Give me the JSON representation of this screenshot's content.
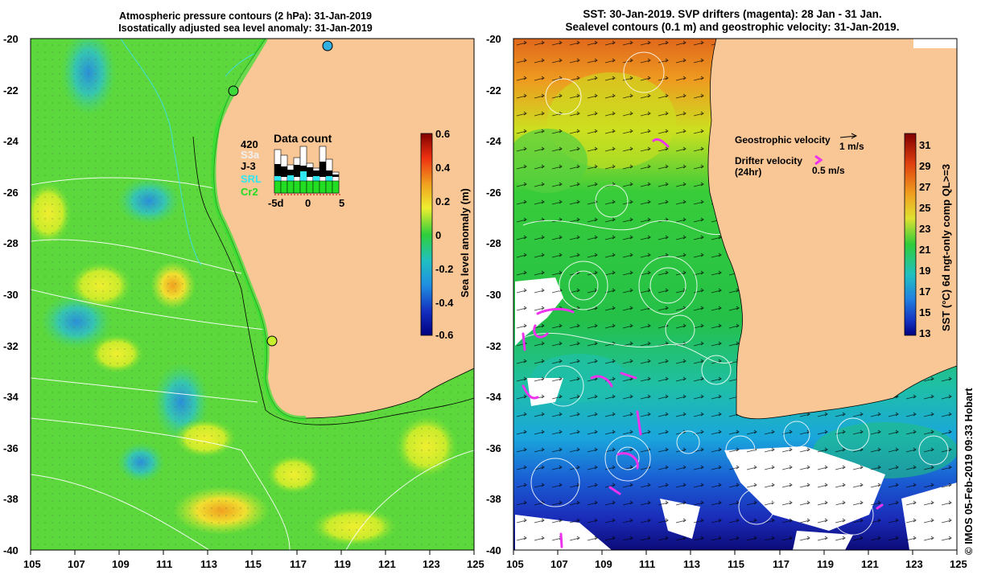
{
  "left_panel": {
    "title_line1": "Atmospheric pressure contours (2 hPa): 31-Jan-2019",
    "title_line2": "Isostatically adjusted sea level anomaly: 31-Jan-2019",
    "lat_ticks": [
      "-20",
      "-22",
      "-24",
      "-26",
      "-28",
      "-30",
      "-32",
      "-34",
      "-36",
      "-38",
      "-40"
    ],
    "lon_ticks": [
      "105",
      "107",
      "109",
      "111",
      "113",
      "115",
      "117",
      "119",
      "121",
      "123",
      "125"
    ],
    "colorbar": {
      "label": "Sea level anomaly (m)",
      "ticks": [
        "0.6",
        "0.4",
        "0.2",
        "0",
        "-0.2",
        "-0.4",
        "-0.6"
      ]
    },
    "data_count": {
      "title": "Data count",
      "total": "420",
      "satellites": [
        {
          "name": "S3a",
          "color": "#f0f0f0"
        },
        {
          "name": "J-3",
          "color": "#000000"
        },
        {
          "name": "SRL",
          "color": "#2fe6f0"
        },
        {
          "name": "Cr2",
          "color": "#22dd22"
        }
      ],
      "x_ticks": [
        "-5d",
        "0",
        "5"
      ]
    }
  },
  "right_panel": {
    "title_line1": "SST: 30-Jan-2019. SVP drifters (magenta): 28 Jan - 31 Jan.",
    "title_line2": "Sealevel contours (0.1 m) and geostrophic velocity: 31-Jan-2019.",
    "lat_ticks": [
      "-20",
      "-22",
      "-24",
      "-26",
      "-28",
      "-30",
      "-32",
      "-34",
      "-36",
      "-38",
      "-40"
    ],
    "lon_ticks": [
      "105",
      "107",
      "109",
      "111",
      "113",
      "115",
      "117",
      "119",
      "121",
      "123",
      "125"
    ],
    "colorbar": {
      "label": "SST (°C) 6d ngt-only comp QL>=3",
      "ticks": [
        "31",
        "29",
        "27",
        "25",
        "23",
        "21",
        "19",
        "17",
        "15",
        "13"
      ]
    },
    "legend": {
      "geo_label": "Geostrophic velocity",
      "geo_speed": "1 m/s",
      "drifter_label": "Drifter velocity",
      "drifter_sub": "(24hr)",
      "drifter_speed": "0.5 m/s"
    },
    "credit": "© IMOS 05-Feb-2019 09:33 Hobart"
  },
  "colors": {
    "land": "#f9c696",
    "ocean_green": "#3fd83a",
    "drifter": "#ee33ee",
    "cold_blue": "#1a2bb8"
  }
}
